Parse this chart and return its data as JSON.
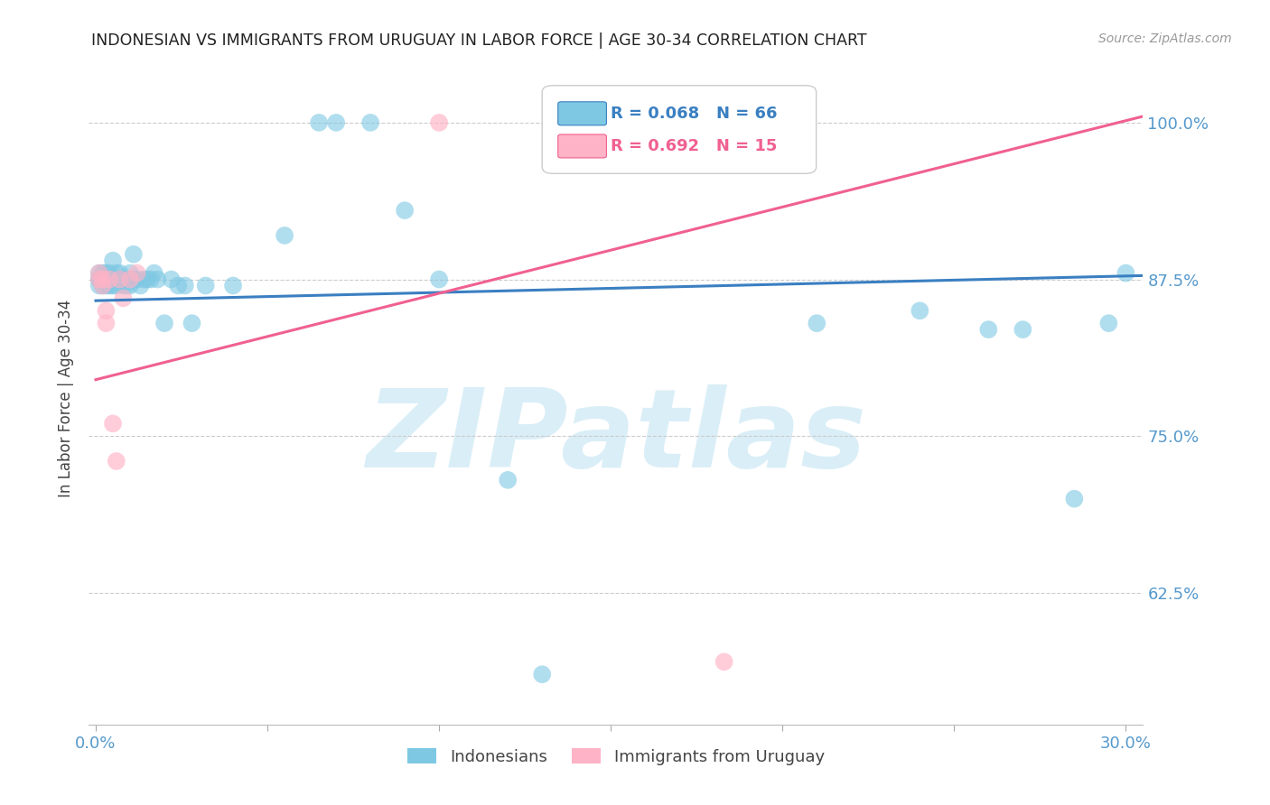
{
  "title": "INDONESIAN VS IMMIGRANTS FROM URUGUAY IN LABOR FORCE | AGE 30-34 CORRELATION CHART",
  "source": "Source: ZipAtlas.com",
  "ylabel": "In Labor Force | Age 30-34",
  "ytick_labels": [
    "100.0%",
    "87.5%",
    "75.0%",
    "62.5%"
  ],
  "ytick_values": [
    1.0,
    0.875,
    0.75,
    0.625
  ],
  "xlim": [
    -0.002,
    0.305
  ],
  "ylim": [
    0.52,
    1.04
  ],
  "legend_blue_r": "0.068",
  "legend_blue_n": "66",
  "legend_pink_r": "0.692",
  "legend_pink_n": "15",
  "legend_label_blue": "Indonesians",
  "legend_label_pink": "Immigrants from Uruguay",
  "blue_color": "#7ec8e3",
  "pink_color": "#ffb3c6",
  "blue_line_color": "#3a7fc1",
  "pink_line_color": "#f06090",
  "title_color": "#222222",
  "axis_label_color": "#5599cc",
  "grid_color": "#cccccc",
  "watermark": "ZIPatlas",
  "watermark_color": "#daeef7",
  "blue_points_x": [
    0.001,
    0.001,
    0.001,
    0.001,
    0.002,
    0.002,
    0.002,
    0.002,
    0.002,
    0.003,
    0.003,
    0.003,
    0.003,
    0.003,
    0.004,
    0.004,
    0.004,
    0.004,
    0.005,
    0.005,
    0.005,
    0.005,
    0.006,
    0.006,
    0.006,
    0.007,
    0.007,
    0.007,
    0.008,
    0.008,
    0.009,
    0.009,
    0.01,
    0.01,
    0.011,
    0.011,
    0.012,
    0.013,
    0.014,
    0.015,
    0.016,
    0.017,
    0.018,
    0.02,
    0.022,
    0.024,
    0.026,
    0.028,
    0.032,
    0.04,
    0.055,
    0.065,
    0.07,
    0.08,
    0.09,
    0.1,
    0.12,
    0.13,
    0.145,
    0.21,
    0.24,
    0.26,
    0.27,
    0.285,
    0.295,
    0.3
  ],
  "blue_points_y": [
    0.875,
    0.875,
    0.88,
    0.87,
    0.875,
    0.88,
    0.875,
    0.875,
    0.87,
    0.875,
    0.88,
    0.875,
    0.87,
    0.875,
    0.88,
    0.875,
    0.875,
    0.87,
    0.89,
    0.875,
    0.87,
    0.875,
    0.88,
    0.875,
    0.87,
    0.875,
    0.88,
    0.875,
    0.875,
    0.87,
    0.875,
    0.87,
    0.88,
    0.87,
    0.895,
    0.875,
    0.875,
    0.87,
    0.875,
    0.875,
    0.875,
    0.88,
    0.875,
    0.84,
    0.875,
    0.87,
    0.87,
    0.84,
    0.87,
    0.87,
    0.91,
    1.0,
    1.0,
    1.0,
    0.93,
    0.875,
    0.715,
    0.56,
    1.0,
    0.84,
    0.85,
    0.835,
    0.835,
    0.7,
    0.84,
    0.88
  ],
  "pink_points_x": [
    0.001,
    0.001,
    0.002,
    0.002,
    0.003,
    0.003,
    0.004,
    0.005,
    0.006,
    0.007,
    0.008,
    0.01,
    0.012,
    0.1,
    0.183
  ],
  "pink_points_y": [
    0.88,
    0.875,
    0.875,
    0.87,
    0.85,
    0.84,
    0.875,
    0.76,
    0.73,
    0.875,
    0.86,
    0.875,
    0.88,
    1.0,
    0.57
  ],
  "blue_line_x": [
    0.0,
    0.305
  ],
  "blue_line_y": [
    0.858,
    0.878
  ],
  "pink_line_x": [
    0.0,
    0.305
  ],
  "pink_line_y": [
    0.795,
    1.005
  ]
}
